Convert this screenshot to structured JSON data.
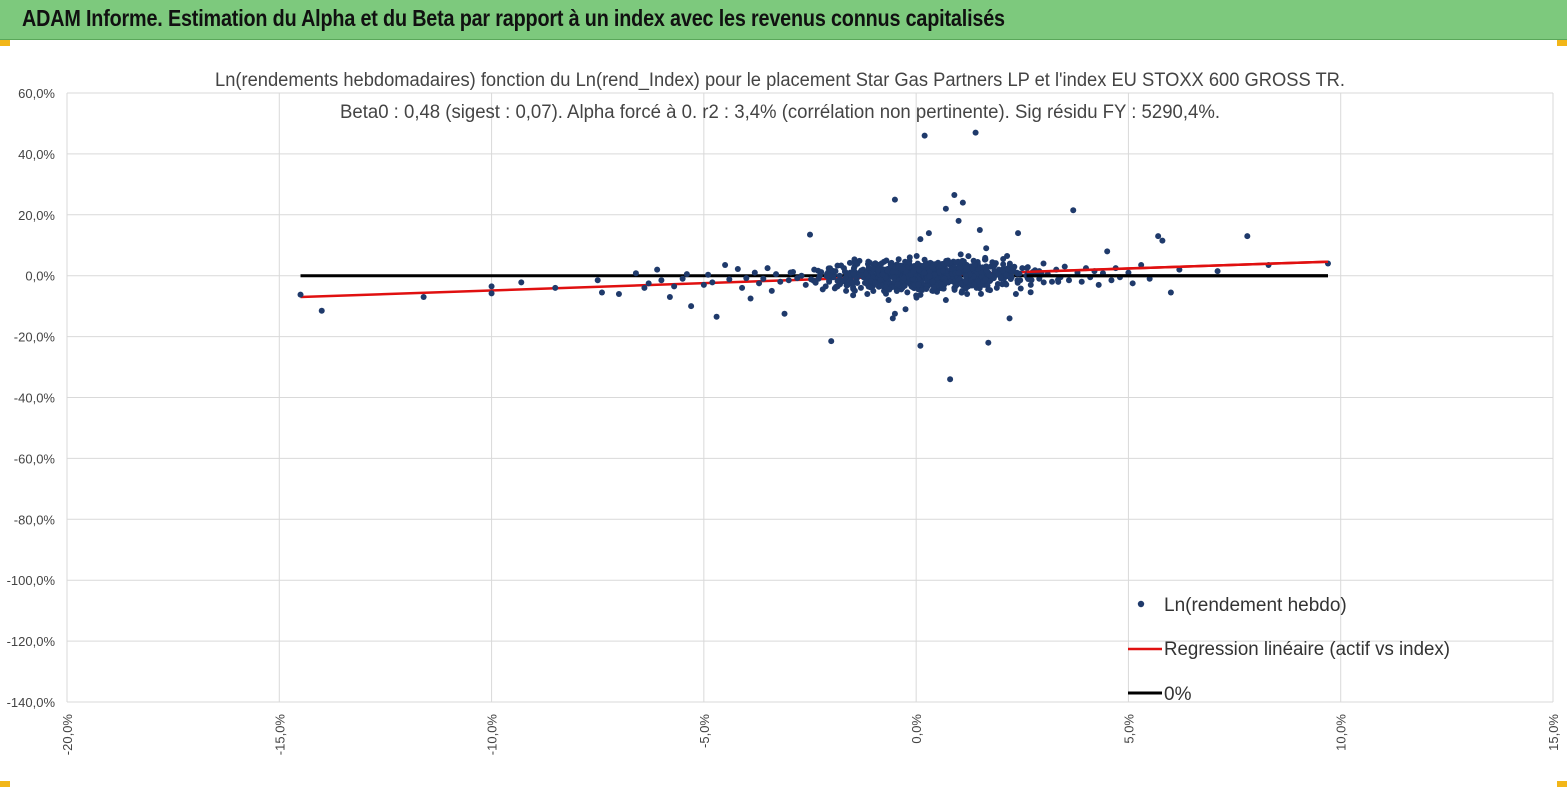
{
  "header": {
    "title": "ADAM Informe. Estimation du Alpha et du Beta par rapport à un index avec les revenus connus capitalisés"
  },
  "colors": {
    "header_bg": "#7dc97d",
    "points": "#1f3a6b",
    "regression": "#e01010",
    "zero_line": "#000000",
    "grid": "#d9d9d9"
  },
  "chart_data": {
    "type": "scatter",
    "title_line1": "Ln(rendements hebdomadaires) fonction du Ln(rend_Index) pour le placement Star Gas Partners LP et l'index EU STOXX 600 GROSS TR.",
    "title_line2": "Beta0 : 0,48 (sigest : 0,07). Alpha forcé à 0. r2 : 3,4% (corrélation non pertinente). Sig résidu FY : 5290,4%.",
    "xlim": [
      -20,
      15
    ],
    "ylim": [
      -140,
      60
    ],
    "x_ticks": [
      -20,
      -15,
      -10,
      -5,
      0,
      5,
      10,
      15
    ],
    "x_tick_labels": [
      "-20,0%",
      "-15,0%",
      "-10,0%",
      "-5,0%",
      "0,0%",
      "5,0%",
      "10,0%",
      "15,0%"
    ],
    "y_ticks": [
      60,
      40,
      20,
      0,
      -20,
      -40,
      -60,
      -80,
      -100,
      -120,
      -140
    ],
    "y_tick_labels": [
      "60,0%",
      "40,0%",
      "20,0%",
      "0,0%",
      "-20,0%",
      "-40,0%",
      "-60,0%",
      "-80,0%",
      "-100,0%",
      "-120,0%",
      "-140,0%"
    ],
    "legend": {
      "position": "bottom-right",
      "entries": [
        "Ln(rendement hebdo)",
        "Regression linéaire (actif vs index)",
        "0%"
      ]
    },
    "regression": {
      "beta": 0.48,
      "alpha": 0,
      "x": [
        -14.5,
        9.7
      ],
      "y": [
        -7.0,
        4.6
      ]
    },
    "zero_line": {
      "x": [
        -14.5,
        9.7
      ],
      "y": [
        0,
        0
      ]
    },
    "series": [
      {
        "name": "Ln(rendement hebdo)",
        "points": [
          [
            -14.5,
            -6.2
          ],
          [
            -14.0,
            -11.5
          ],
          [
            -11.6,
            -7.0
          ],
          [
            -10.0,
            -5.8
          ],
          [
            -10.0,
            -3.5
          ],
          [
            -9.3,
            -2.2
          ],
          [
            -8.5,
            -4.0
          ],
          [
            -7.5,
            -1.5
          ],
          [
            -7.4,
            -5.5
          ],
          [
            -7.0,
            -6.0
          ],
          [
            -6.6,
            0.8
          ],
          [
            -6.4,
            -4.0
          ],
          [
            -6.3,
            -2.5
          ],
          [
            -6.0,
            -1.5
          ],
          [
            -6.1,
            2.0
          ],
          [
            -5.8,
            -7.0
          ],
          [
            -5.7,
            -3.5
          ],
          [
            -5.5,
            -1.0
          ],
          [
            -5.4,
            0.5
          ],
          [
            -5.3,
            -10.0
          ],
          [
            -5.0,
            -3.0
          ],
          [
            -4.9,
            0.3
          ],
          [
            -4.8,
            -2.2
          ],
          [
            -4.7,
            -13.5
          ],
          [
            -4.5,
            3.5
          ],
          [
            -4.4,
            -1.2
          ],
          [
            -4.2,
            2.2
          ],
          [
            -4.0,
            -0.8
          ],
          [
            -4.1,
            -4.0
          ],
          [
            -3.9,
            -7.5
          ],
          [
            -3.8,
            1.0
          ],
          [
            -3.7,
            -2.5
          ],
          [
            -3.6,
            -1.0
          ],
          [
            -3.5,
            2.5
          ],
          [
            -3.4,
            -5.0
          ],
          [
            -3.3,
            0.5
          ],
          [
            -3.2,
            -2.0
          ],
          [
            -3.1,
            -12.5
          ],
          [
            -3.0,
            -1.5
          ],
          [
            -2.9,
            1.2
          ],
          [
            -2.8,
            -0.8
          ],
          [
            -2.7,
            0.0
          ],
          [
            -2.6,
            -3.0
          ],
          [
            -2.5,
            13.5
          ],
          [
            -2.4,
            2.0
          ],
          [
            -2.3,
            -1.0
          ],
          [
            -2.2,
            -4.5
          ],
          [
            -2.1,
            0.5
          ],
          [
            -2.05,
            -2.0
          ],
          [
            -2.0,
            -21.5
          ],
          [
            -1.9,
            1.5
          ],
          [
            -1.85,
            -3.5
          ],
          [
            -1.8,
            0.0
          ],
          [
            -1.75,
            -1.8
          ],
          [
            -1.7,
            2.5
          ],
          [
            -1.65,
            -5.0
          ],
          [
            -1.6,
            -0.5
          ],
          [
            -1.55,
            1.0
          ],
          [
            -1.5,
            -2.5
          ],
          [
            -1.45,
            3.0
          ],
          [
            -1.4,
            -1.0
          ],
          [
            -1.35,
            0.5
          ],
          [
            -1.3,
            -4.0
          ],
          [
            -1.25,
            2.0
          ],
          [
            -1.2,
            -0.3
          ],
          [
            -1.15,
            -6.0
          ],
          [
            -1.1,
            1.0
          ],
          [
            -1.05,
            -2.0
          ],
          [
            -1.0,
            3.5
          ],
          [
            -0.95,
            -0.8
          ],
          [
            -0.9,
            0.8
          ],
          [
            -0.85,
            -3.0
          ],
          [
            -0.8,
            2.2
          ],
          [
            -0.75,
            -1.5
          ],
          [
            -0.7,
            5.0
          ],
          [
            -0.65,
            -8.0
          ],
          [
            -0.6,
            0.0
          ],
          [
            -0.55,
            -2.5
          ],
          [
            -0.5,
            1.5
          ],
          [
            -0.5,
            25.0
          ],
          [
            -0.5,
            -12.5
          ],
          [
            -0.55,
            -14.0
          ],
          [
            -0.45,
            -0.5
          ],
          [
            -0.4,
            3.0
          ],
          [
            -0.35,
            -4.5
          ],
          [
            -0.3,
            1.0
          ],
          [
            -0.25,
            -11.0
          ],
          [
            -0.2,
            -1.0
          ],
          [
            -0.15,
            6.0
          ],
          [
            -0.1,
            -2.0
          ],
          [
            -0.05,
            0.5
          ],
          [
            0.0,
            -6.5
          ],
          [
            0.0,
            2.5
          ],
          [
            0.05,
            -1.5
          ],
          [
            0.1,
            -23.0
          ],
          [
            0.1,
            12.0
          ],
          [
            0.15,
            0.0
          ],
          [
            0.2,
            -3.5
          ],
          [
            0.25,
            4.0
          ],
          [
            0.3,
            -1.0
          ],
          [
            0.3,
            14.0
          ],
          [
            0.35,
            1.5
          ],
          [
            0.4,
            -5.0
          ],
          [
            0.45,
            2.0
          ],
          [
            0.5,
            -0.5
          ],
          [
            0.2,
            46.0
          ],
          [
            0.55,
            3.5
          ],
          [
            0.6,
            -2.5
          ],
          [
            0.65,
            1.0
          ],
          [
            0.7,
            -8.0
          ],
          [
            0.7,
            22.0
          ],
          [
            0.75,
            5.0
          ],
          [
            0.8,
            -1.5
          ],
          [
            0.85,
            0.5
          ],
          [
            0.8,
            -34.0
          ],
          [
            0.9,
            26.5
          ],
          [
            0.9,
            -4.0
          ],
          [
            0.95,
            2.5
          ],
          [
            1.0,
            -0.5
          ],
          [
            1.0,
            18.0
          ],
          [
            1.05,
            7.0
          ],
          [
            1.1,
            -2.0
          ],
          [
            1.1,
            24.0
          ],
          [
            1.15,
            1.0
          ],
          [
            1.2,
            -6.0
          ],
          [
            1.25,
            3.0
          ],
          [
            1.3,
            -1.0
          ],
          [
            1.35,
            0.5
          ],
          [
            1.4,
            47.0
          ],
          [
            1.4,
            -2.5
          ],
          [
            1.45,
            4.5
          ],
          [
            1.5,
            15.0
          ],
          [
            1.5,
            -0.5
          ],
          [
            1.55,
            2.0
          ],
          [
            1.6,
            -3.0
          ],
          [
            1.65,
            9.0
          ],
          [
            1.7,
            -22.0
          ],
          [
            1.7,
            1.0
          ],
          [
            1.75,
            -1.5
          ],
          [
            1.8,
            3.5
          ],
          [
            1.85,
            0.0
          ],
          [
            1.9,
            -4.0
          ],
          [
            1.95,
            2.0
          ],
          [
            2.0,
            -1.0
          ],
          [
            2.05,
            5.5
          ],
          [
            2.1,
            -2.5
          ],
          [
            2.15,
            0.8
          ],
          [
            2.2,
            -14.0
          ],
          [
            2.2,
            3.0
          ],
          [
            2.25,
            -0.5
          ],
          [
            2.3,
            1.5
          ],
          [
            2.35,
            -6.0
          ],
          [
            2.4,
            14.0
          ],
          [
            2.45,
            -1.5
          ],
          [
            2.5,
            2.5
          ],
          [
            2.6,
            0.0
          ],
          [
            2.7,
            -3.0
          ],
          [
            2.8,
            1.8
          ],
          [
            2.9,
            -1.0
          ],
          [
            3.0,
            4.0
          ],
          [
            3.1,
            0.5
          ],
          [
            3.2,
            -2.0
          ],
          [
            3.3,
            2.0
          ],
          [
            3.4,
            -0.5
          ],
          [
            3.5,
            3.0
          ],
          [
            3.6,
            -1.5
          ],
          [
            3.7,
            21.5
          ],
          [
            3.8,
            1.0
          ],
          [
            3.9,
            -2.0
          ],
          [
            4.0,
            2.5
          ],
          [
            4.1,
            -0.5
          ],
          [
            4.2,
            1.5
          ],
          [
            4.3,
            -3.0
          ],
          [
            4.4,
            0.8
          ],
          [
            4.5,
            8.0
          ],
          [
            4.6,
            -1.5
          ],
          [
            4.7,
            2.5
          ],
          [
            4.8,
            -0.5
          ],
          [
            5.0,
            1.0
          ],
          [
            5.1,
            -2.5
          ],
          [
            5.3,
            3.5
          ],
          [
            5.5,
            -1.0
          ],
          [
            5.7,
            13.0
          ],
          [
            5.8,
            11.5
          ],
          [
            6.0,
            -5.5
          ],
          [
            6.2,
            2.0
          ],
          [
            7.1,
            1.5
          ],
          [
            7.8,
            13.0
          ],
          [
            8.3,
            3.5
          ],
          [
            9.7,
            4.0
          ]
        ]
      }
    ]
  }
}
